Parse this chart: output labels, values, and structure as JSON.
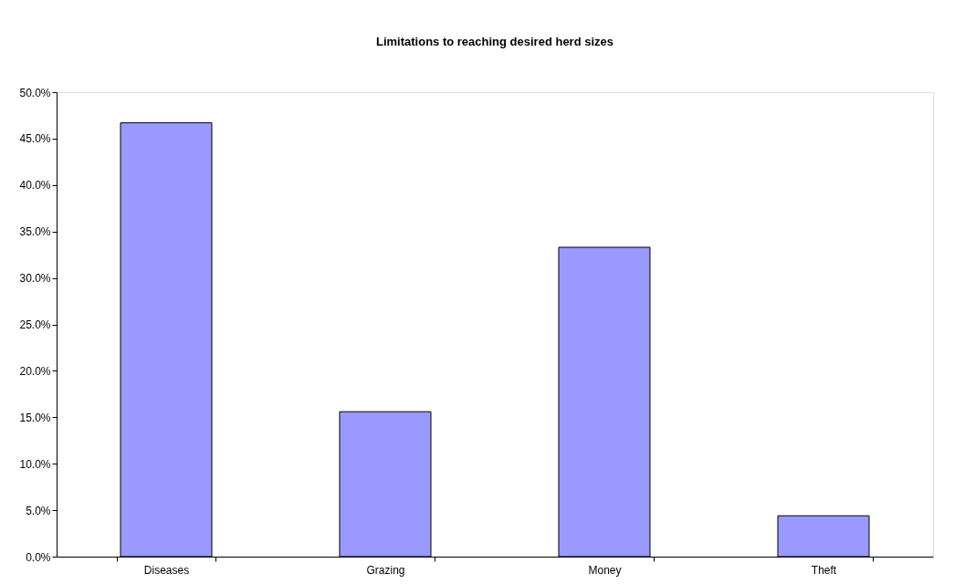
{
  "chart_data": {
    "type": "bar",
    "title": "Limitations to reaching desired herd sizes",
    "categories": [
      "Diseases",
      "Grazing",
      "Money",
      "Theft"
    ],
    "values": [
      46.7,
      15.6,
      33.3,
      4.4
    ],
    "color": "#9999ff",
    "ylim": [
      0,
      50
    ],
    "yticks": [
      {
        "value": 0,
        "label": "0.0%"
      },
      {
        "value": 5,
        "label": "5.0%"
      },
      {
        "value": 10,
        "label": "10.0%"
      },
      {
        "value": 15,
        "label": "15.0%"
      },
      {
        "value": 20,
        "label": "20.0%"
      },
      {
        "value": 25,
        "label": "25.0%"
      },
      {
        "value": 30,
        "label": "30.0%"
      },
      {
        "value": 35,
        "label": "35.0%"
      },
      {
        "value": 40,
        "label": "40.0%"
      },
      {
        "value": 45,
        "label": "45.0%"
      },
      {
        "value": 50,
        "label": "50.0%"
      }
    ],
    "grid": false
  }
}
